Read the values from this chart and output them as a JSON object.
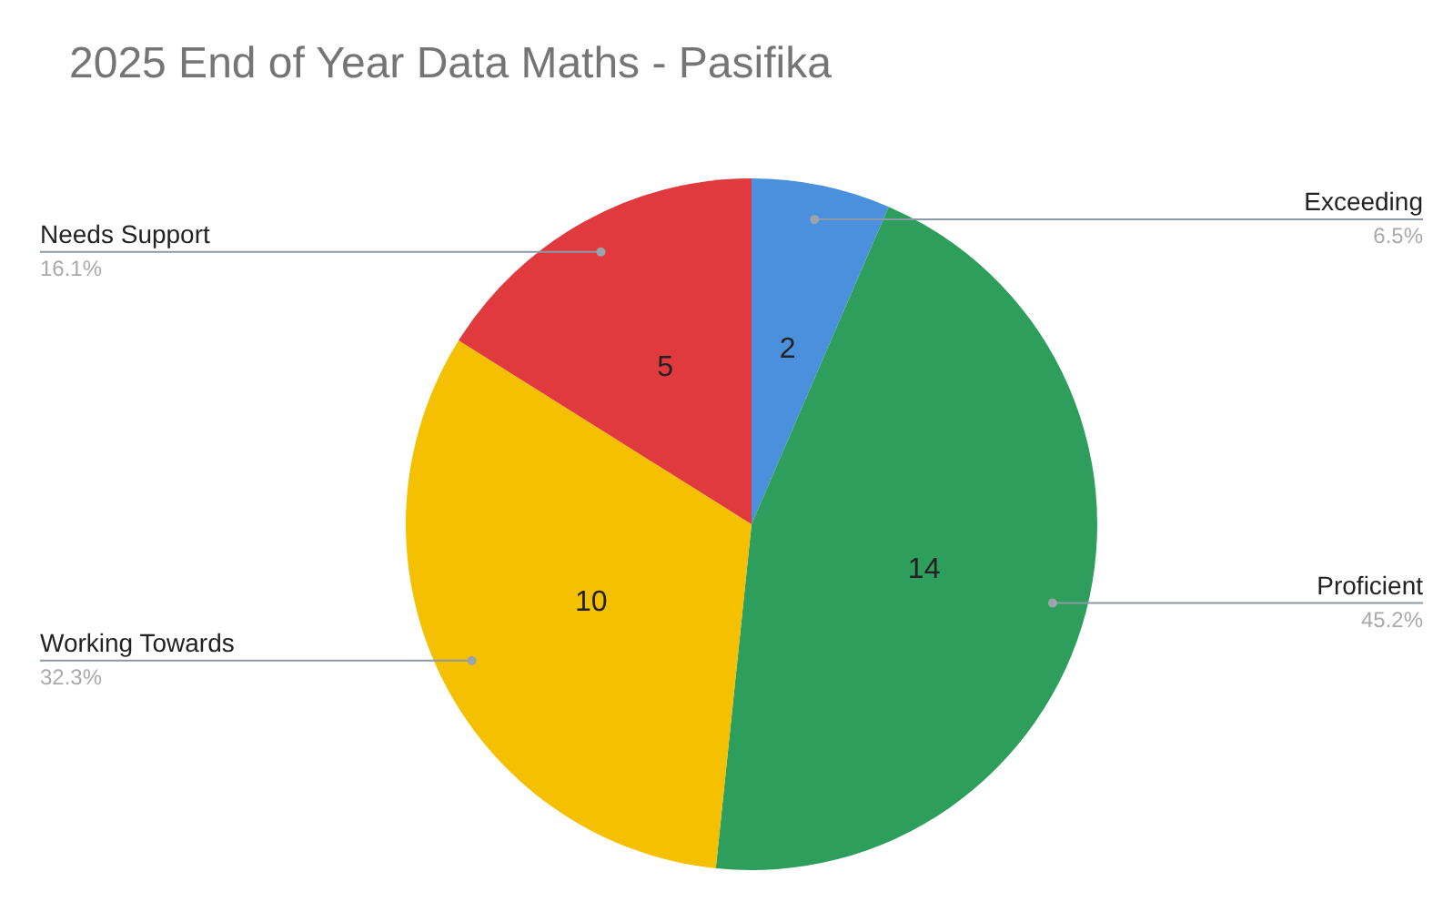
{
  "chart_data": {
    "type": "pie",
    "title": "2025 End of Year Data Maths - Pasifika",
    "categories": [
      "Exceeding",
      "Proficient",
      "Working Towards",
      "Needs Support"
    ],
    "values": [
      6.5,
      45.2,
      32.3,
      16.1
    ],
    "colors": [
      "#4a90dc",
      "#2e9e5c",
      "#f5c000",
      "#e03a3e"
    ],
    "value_labels": [
      "6.5%",
      "45.2%",
      "32.3%",
      "16.1%"
    ],
    "annotations": [
      "2",
      "14",
      "10",
      "5"
    ],
    "legend": false
  }
}
